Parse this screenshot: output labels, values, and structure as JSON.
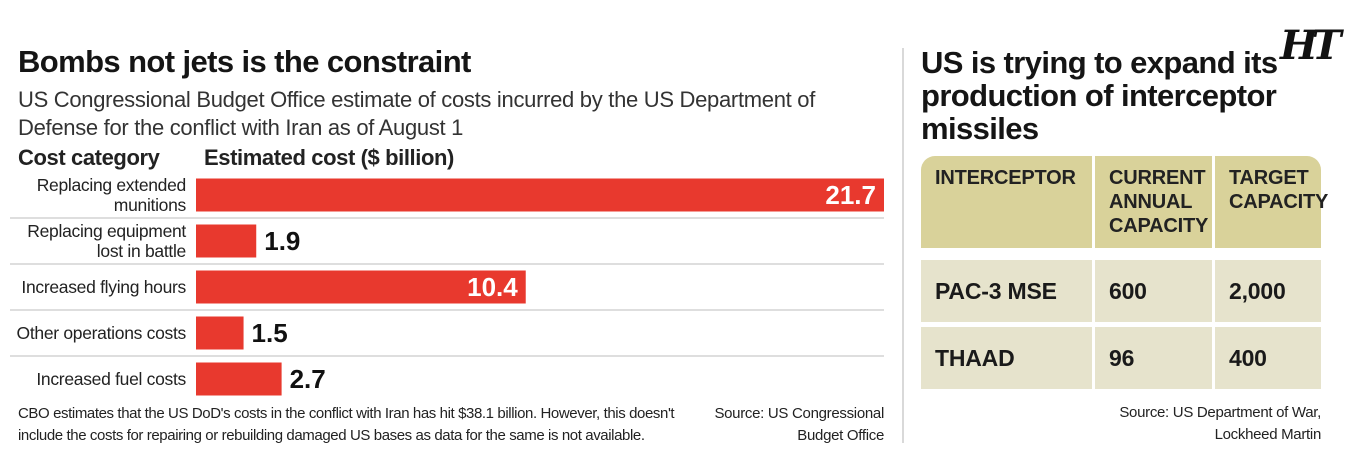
{
  "left_panel": {
    "title": "Bombs not jets is the constraint",
    "subtitle": "US Congressional Budget Office estimate of costs incurred by the US Department of Defense for the conflict with Iran as of August 1",
    "col_category": "Cost category",
    "col_cost": "Estimated cost ($ billion)",
    "note": "CBO estimates that the US DoD's costs in the conflict with Iran has hit $38.1 billion. However, this doesn't include the costs for repairing or rebuilding damaged US bases as data for the same is not available.",
    "source": "Source: US Congressional Budget Office"
  },
  "chart_data": {
    "type": "bar",
    "orientation": "horizontal",
    "categories": [
      [
        "Replacing extended",
        "munitions"
      ],
      [
        "Replacing equipment",
        "lost in battle"
      ],
      [
        "Increased flying hours"
      ],
      [
        "Other operations costs"
      ],
      [
        "Increased fuel costs"
      ]
    ],
    "values": [
      21.7,
      1.9,
      10.4,
      1.5,
      2.7
    ],
    "value_labels": [
      "21.7",
      "1.9",
      "10.4",
      "1.5",
      "2.7"
    ],
    "xlim": [
      0,
      21.7
    ],
    "bar_color": "#e8392e",
    "grid": false
  },
  "right_panel": {
    "logo": "HT",
    "title": "US is trying to expand its production of interceptor missiles",
    "table": {
      "headers": [
        "INTERCEPTOR",
        "CURRENT ANNUAL CAPACITY",
        "TARGET CAPACITY"
      ],
      "rows": [
        [
          "PAC-3 MSE",
          "600",
          "2,000"
        ],
        [
          "THAAD",
          "96",
          "400"
        ]
      ]
    },
    "source": "Source: US Department of War, Lockheed Martin"
  },
  "colors": {
    "bar": "#e8392e",
    "table_header": "#d9d29a",
    "table_row": "#e6e3cc"
  }
}
